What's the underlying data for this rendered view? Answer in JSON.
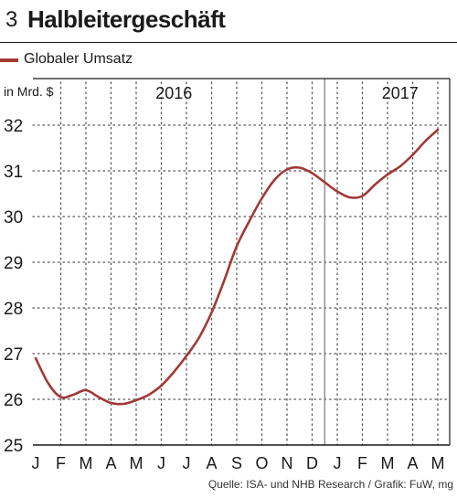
{
  "figure": {
    "number": "3",
    "title": "Halbleitergeschäft"
  },
  "legend": {
    "label": "Globaler Umsatz"
  },
  "unit": "in Mrd. $",
  "source": "Quelle: ISA- und NHB Research / Grafik: FuW, mg",
  "colors": {
    "series": "#a13936",
    "grid": "#555555",
    "axis": "#1a1a1a"
  },
  "chart_data": {
    "type": "line",
    "ylabel": "in Mrd. $",
    "ylim": [
      25,
      32
    ],
    "yticks": [
      25,
      26,
      27,
      28,
      29,
      30,
      31,
      32
    ],
    "grid": "dotted",
    "legend_position": "top-left",
    "year_labels": [
      {
        "label": "2016",
        "at_month": 5.5
      },
      {
        "label": "2017",
        "at_month": 14.5
      }
    ],
    "year_divider_at": 11.5,
    "x_tick_labels": [
      "J",
      "F",
      "M",
      "A",
      "M",
      "J",
      "J",
      "A",
      "S",
      "O",
      "N",
      "D",
      "J",
      "F",
      "M",
      "A",
      "M"
    ],
    "series": [
      {
        "name": "Globaler Umsatz",
        "points": [
          [
            0,
            26.9
          ],
          [
            0.5,
            26.35
          ],
          [
            1,
            26.05
          ],
          [
            1.5,
            26.1
          ],
          [
            2,
            26.2
          ],
          [
            2.5,
            26.05
          ],
          [
            3,
            25.92
          ],
          [
            3.5,
            25.9
          ],
          [
            4,
            25.98
          ],
          [
            4.5,
            26.1
          ],
          [
            5,
            26.3
          ],
          [
            5.5,
            26.6
          ],
          [
            6,
            26.95
          ],
          [
            6.5,
            27.35
          ],
          [
            7,
            27.9
          ],
          [
            7.5,
            28.6
          ],
          [
            8,
            29.35
          ],
          [
            8.5,
            29.9
          ],
          [
            9,
            30.4
          ],
          [
            9.5,
            30.8
          ],
          [
            10,
            31.03
          ],
          [
            10.5,
            31.07
          ],
          [
            11,
            30.95
          ],
          [
            11.5,
            30.75
          ],
          [
            12,
            30.55
          ],
          [
            12.5,
            30.42
          ],
          [
            13,
            30.45
          ],
          [
            13.5,
            30.7
          ],
          [
            14,
            30.92
          ],
          [
            14.5,
            31.1
          ],
          [
            15,
            31.35
          ],
          [
            15.5,
            31.65
          ],
          [
            16,
            31.9
          ]
        ]
      }
    ]
  }
}
